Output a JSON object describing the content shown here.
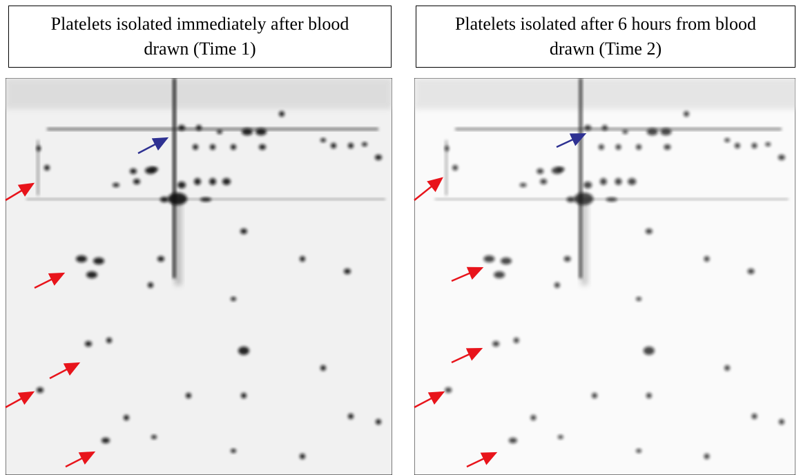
{
  "panels": [
    {
      "title": "Platelets isolated immediately after blood drawn (Time 1)"
    },
    {
      "title": "Platelets isolated after 6 hours from blood drawn (Time 2)"
    }
  ]
}
